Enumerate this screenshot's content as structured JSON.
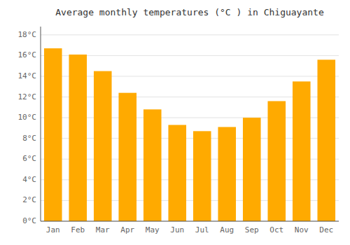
{
  "chart_data": {
    "type": "bar",
    "title": "Average monthly temperatures (°C ) in Chiguayante",
    "categories": [
      "Jan",
      "Feb",
      "Mar",
      "Apr",
      "May",
      "Jun",
      "Jul",
      "Aug",
      "Sep",
      "Oct",
      "Nov",
      "Dec"
    ],
    "values": [
      16.7,
      16.1,
      14.5,
      12.4,
      10.8,
      9.3,
      8.7,
      9.1,
      10.0,
      11.6,
      13.5,
      15.6
    ],
    "color": "#FFAA00",
    "ylim": [
      0,
      18.8
    ],
    "yticks": [
      {
        "value": 0,
        "label": "0°C"
      },
      {
        "value": 2,
        "label": "2°C"
      },
      {
        "value": 4,
        "label": "4°C"
      },
      {
        "value": 6,
        "label": "6°C"
      },
      {
        "value": 8,
        "label": "8°C"
      },
      {
        "value": 10,
        "label": "10°C"
      },
      {
        "value": 12,
        "label": "12°C"
      },
      {
        "value": 14,
        "label": "14°C"
      },
      {
        "value": 16,
        "label": "16°C"
      },
      {
        "value": 18,
        "label": "18°C"
      }
    ],
    "grid": true
  }
}
